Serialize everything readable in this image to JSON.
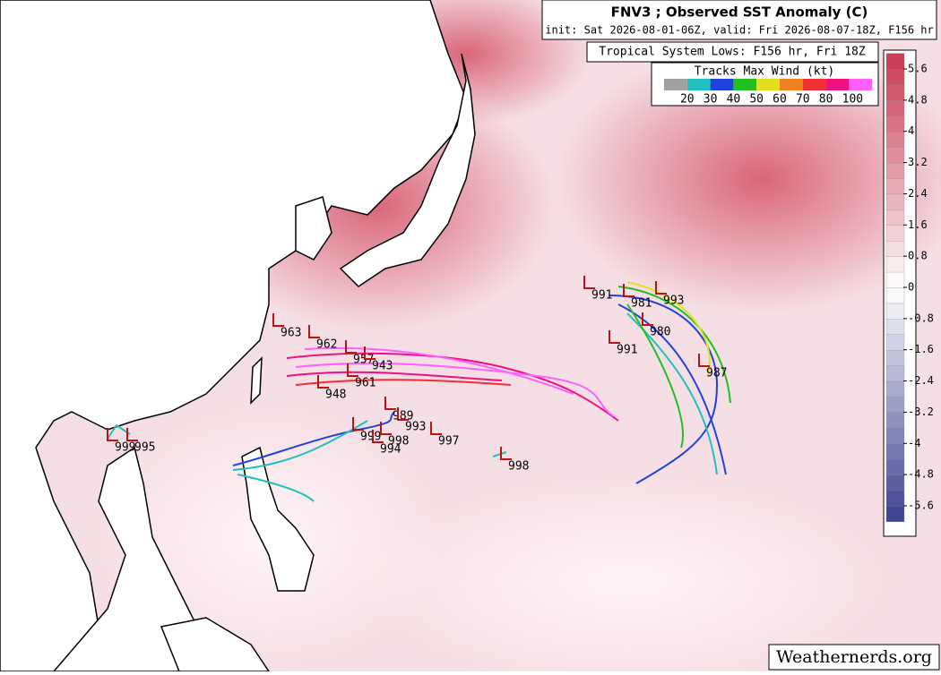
{
  "header": {
    "title": "FNV3 ; Observed SST Anomaly (C)",
    "init": "init: Sat 2026-08-01-06Z, valid: Fri 2026-08-07-18Z, F156 hr",
    "lows_label": "Tropical System Lows: F156 hr, Fri 18Z"
  },
  "wind_legend": {
    "title": "Tracks Max Wind (kt)",
    "colors": [
      "#a0a0a0",
      "#20c0c0",
      "#2040e0",
      "#20c020",
      "#e0e020",
      "#f08020",
      "#f03030",
      "#f0107f",
      "#ff60ff"
    ],
    "ticks": [
      20,
      30,
      40,
      50,
      60,
      70,
      80,
      100
    ]
  },
  "colorbar": {
    "vlim": [
      -6,
      6
    ],
    "ticks": [
      5.6,
      4.8,
      4,
      3.2,
      2.4,
      1.6,
      0.8,
      0,
      -0.8,
      -1.6,
      -2.4,
      -3.2,
      -4,
      -4.8,
      -5.6
    ]
  },
  "pressure_labels": [
    999,
    995,
    989,
    993,
    999,
    998,
    994,
    997,
    998,
    987,
    991,
    993,
    981,
    980,
    991,
    948,
    957,
    943,
    963,
    962,
    961
  ],
  "watermark": "Weathernerds.org"
}
